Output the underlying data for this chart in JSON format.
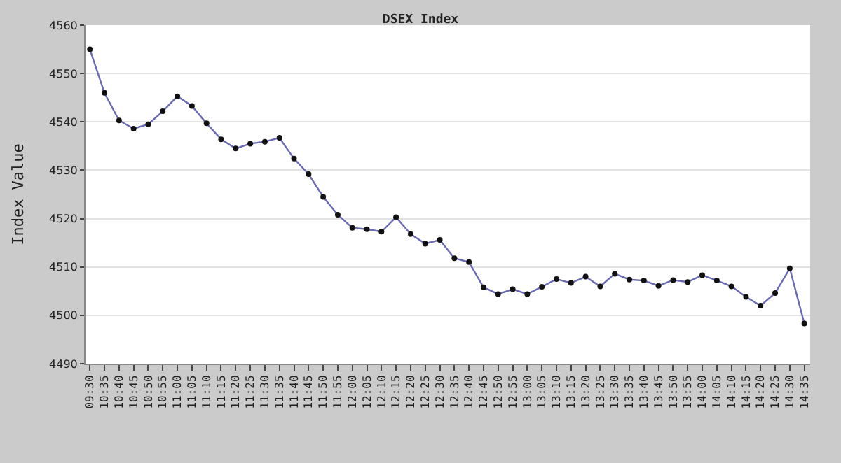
{
  "chart_data": {
    "type": "line",
    "title": "DSEX Index",
    "ylabel": "Index Value",
    "categories": [
      "09:30",
      "10:35",
      "10:40",
      "10:45",
      "10:50",
      "10:55",
      "11:00",
      "11:05",
      "11:10",
      "11:15",
      "11:20",
      "11:25",
      "11:30",
      "11:35",
      "11:40",
      "11:45",
      "11:50",
      "11:55",
      "12:00",
      "12:05",
      "12:10",
      "12:15",
      "12:20",
      "12:25",
      "12:30",
      "12:35",
      "12:40",
      "12:45",
      "12:50",
      "12:55",
      "13:00",
      "13:05",
      "13:10",
      "13:15",
      "13:20",
      "13:25",
      "13:30",
      "13:35",
      "13:40",
      "13:45",
      "13:50",
      "13:55",
      "14:00",
      "14:05",
      "14:10",
      "14:15",
      "14:20",
      "14:25",
      "14:30",
      "14:35"
    ],
    "series": [
      {
        "color": "#6a6ab4",
        "values": [
          4555,
          4546,
          4540.3,
          4538.6,
          4539.5,
          4542.2,
          4545.3,
          4543.3,
          4539.7,
          4536.4,
          4534.5,
          4535.5,
          4535.9,
          4536.7,
          4532.4,
          4529.2,
          4524.5,
          4520.8,
          4518.1,
          4517.8,
          4517.3,
          4520.3,
          4516.8,
          4514.8,
          4515.6,
          4511.8,
          4511.0,
          4505.8,
          4504.4,
          4505.4,
          4504.4,
          4505.9,
          4507.5,
          4506.7,
          4508.0,
          4506.0,
          4508.6,
          4507.4,
          4507.2,
          4506.1,
          4507.3,
          4506.9,
          4508.3,
          4507.2,
          4506.0,
          4503.8,
          4502.0,
          4504.6,
          4509.7,
          4498.3
        ]
      }
    ],
    "ylim": [
      4490,
      4560
    ],
    "yticks": [
      4490,
      4500,
      4510,
      4520,
      4530,
      4540,
      4550,
      4560
    ],
    "grid": "y",
    "marker": "circle",
    "line_style": "solid",
    "legend": false
  }
}
